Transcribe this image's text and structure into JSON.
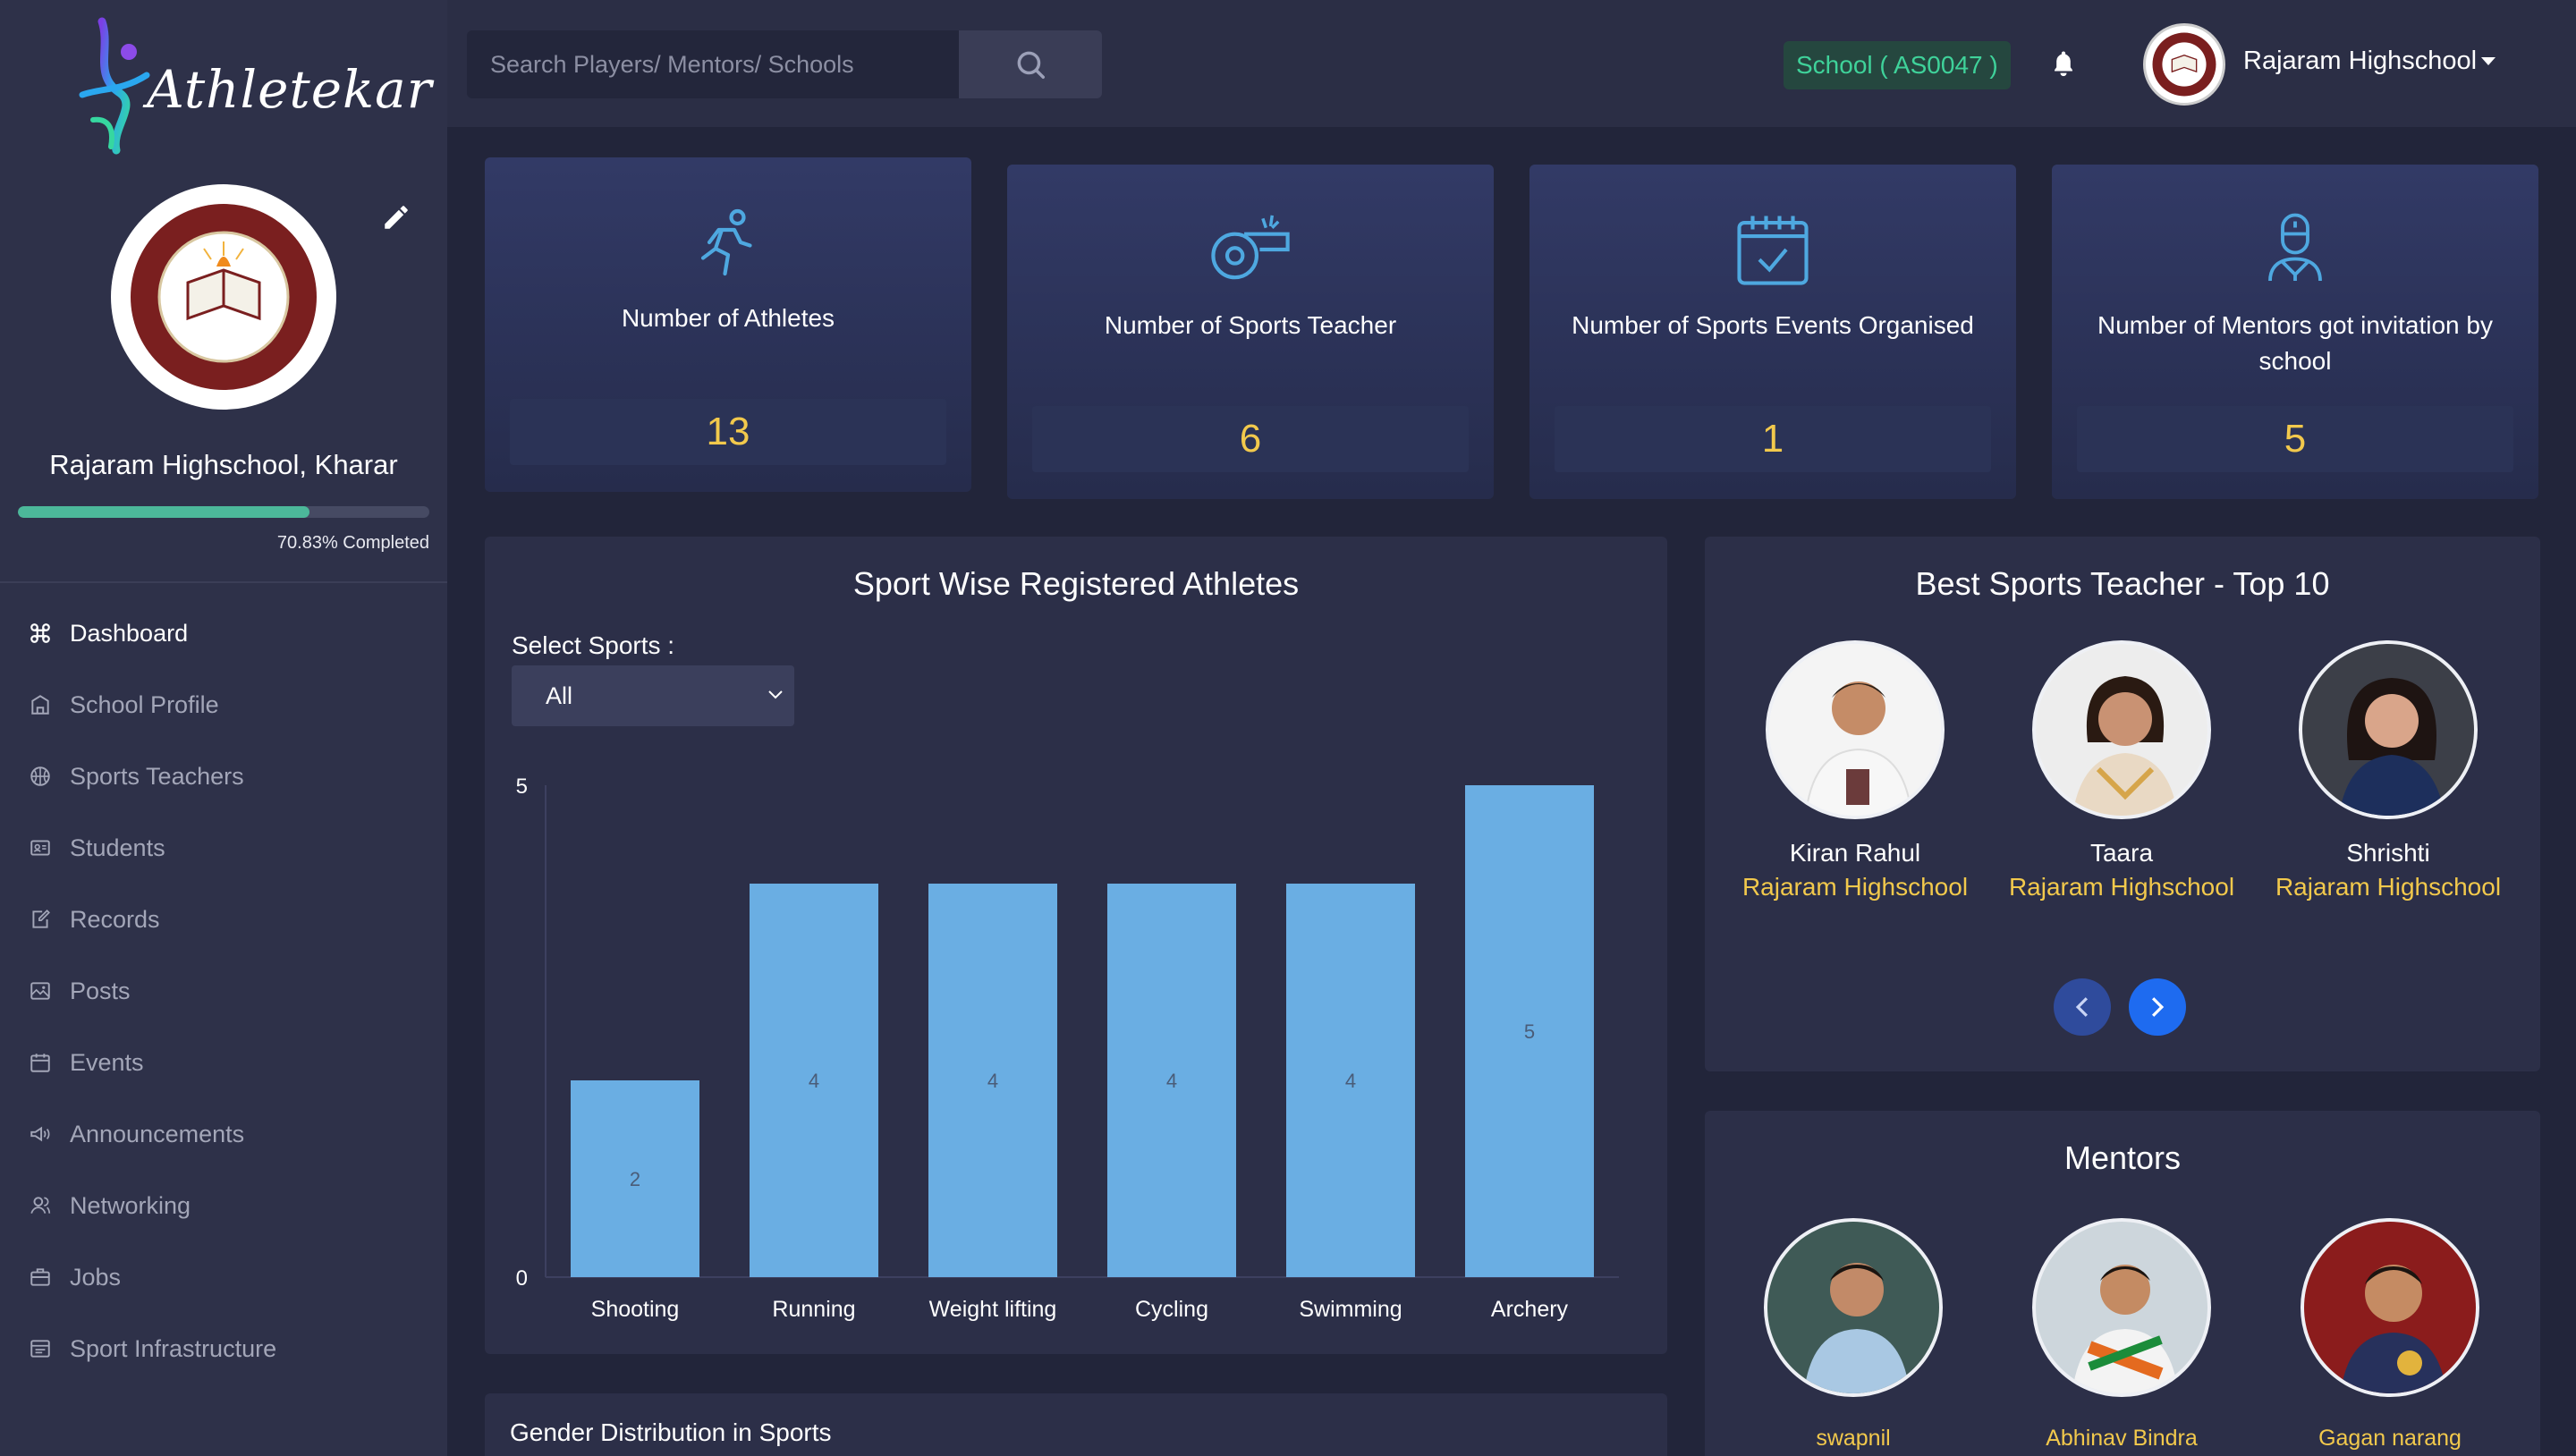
{
  "brand": {
    "name": "Athletekar"
  },
  "sidebar": {
    "school_name": "Rajaram Highschool, Kharar",
    "progress": {
      "percent": 70.83,
      "label": "70.83% Completed"
    },
    "nav": [
      {
        "label": "Dashboard",
        "icon": "command-icon",
        "active": true
      },
      {
        "label": "School Profile",
        "icon": "building-icon"
      },
      {
        "label": "Sports Teachers",
        "icon": "basketball-icon"
      },
      {
        "label": "Students",
        "icon": "id-card-icon"
      },
      {
        "label": "Records",
        "icon": "edit-note-icon"
      },
      {
        "label": "Posts",
        "icon": "image-post-icon"
      },
      {
        "label": "Events",
        "icon": "calendar-icon"
      },
      {
        "label": "Announcements",
        "icon": "megaphone-icon"
      },
      {
        "label": "Networking",
        "icon": "users-icon"
      },
      {
        "label": "Jobs",
        "icon": "briefcase-icon"
      },
      {
        "label": "Sport Infrastructure",
        "icon": "list-box-icon"
      }
    ]
  },
  "header": {
    "search_placeholder": "Search Players/ Mentors/ Schools",
    "school_code": "School ( AS0047 )",
    "user_name": "Rajaram Highschool"
  },
  "stats": [
    {
      "label": "Number of Athletes",
      "value": "13",
      "icon": "runner-icon"
    },
    {
      "label": "Number of Sports Teacher",
      "value": "6",
      "icon": "whistle-icon"
    },
    {
      "label": "Number of Sports Events Organised",
      "value": "1",
      "icon": "calendar-check-icon"
    },
    {
      "label": "Number of Mentors got invitation by school",
      "value": "5",
      "icon": "mentor-icon"
    }
  ],
  "sport_chart": {
    "title": "Sport Wise Registered Athletes",
    "select_label": "Select Sports :",
    "selected": "All"
  },
  "chart_data": {
    "type": "bar",
    "title": "Sport Wise Registered Athletes",
    "categories": [
      "Shooting",
      "Running",
      "Weight lifting",
      "Cycling",
      "Swimming",
      "Archery"
    ],
    "values": [
      2,
      4,
      4,
      4,
      4,
      5
    ],
    "ylim": [
      0,
      5
    ],
    "yticks": [
      "0",
      "5"
    ],
    "bar_color": "#6aaee3",
    "data_labels": true,
    "grid": false,
    "legend": "none"
  },
  "teachers": {
    "title": "Best Sports Teacher - Top 10",
    "items": [
      {
        "name": "Kiran Rahul",
        "school": "Rajaram Highschool"
      },
      {
        "name": "Taara",
        "school": "Rajaram Highschool"
      },
      {
        "name": "Shrishti",
        "school": "Rajaram Highschool"
      }
    ],
    "prev_symbol": "‹",
    "next_symbol": "›"
  },
  "mentors": {
    "title": "Mentors",
    "items": [
      {
        "name": "swapnil"
      },
      {
        "name": "Abhinav Bindra"
      },
      {
        "name": "Gagan narang"
      }
    ]
  },
  "gender": {
    "title": "Gender Distribution in Sports"
  },
  "colors": {
    "accent_yellow": "#f2c94c",
    "accent_green": "#3fd29a",
    "icon_blue": "#4ea8e0",
    "progress": "#4cb89a"
  }
}
